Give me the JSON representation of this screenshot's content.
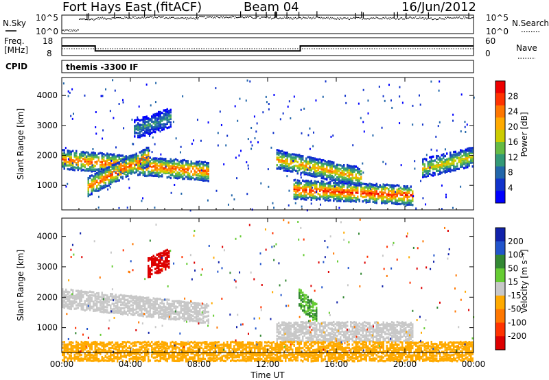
{
  "header": {
    "station": "Fort Hays East (fitACF)",
    "beam": "Beam 04",
    "date": "16/Jun/2012"
  },
  "nsky_panel": {
    "left_label": "N.Sky",
    "right_label": "N.Search",
    "y_ticks": [
      "10^5",
      "10^0"
    ],
    "right_ticks": [
      "10^5",
      "10^0"
    ]
  },
  "freq_panel": {
    "left_label_1": "Freq.",
    "left_label_2": "[MHz]",
    "right_label": "Nave",
    "y_ticks": [
      "18",
      "8"
    ],
    "right_ticks": [
      "60",
      "0"
    ]
  },
  "cpid": {
    "label": "CPID",
    "value": "themis -3300 IF"
  },
  "x_axis": {
    "label": "Time UT",
    "ticks": [
      "00:00",
      "04:00",
      "08:00",
      "12:00",
      "16:00",
      "20:00",
      "00:00"
    ]
  },
  "power_panel": {
    "ylabel": "Slant Range [km]",
    "y_ticks": [
      "1000",
      "2000",
      "3000",
      "4000"
    ],
    "colorbar_label": "Power [dB]",
    "colorbar_ticks": [
      "28",
      "24",
      "20",
      "16",
      "12",
      "8",
      "4"
    ],
    "colors": [
      "#ee0000",
      "#ff3300",
      "#ff7700",
      "#ffaa00",
      "#cccc00",
      "#66bb44",
      "#339977",
      "#2266aa",
      "#1133cc",
      "#0000ff"
    ]
  },
  "velocity_panel": {
    "ylabel": "Slant Range [km]",
    "y_ticks": [
      "1000",
      "2000",
      "3000",
      "4000"
    ],
    "colorbar_label": "Velocity [m s⁻¹]",
    "colorbar_ticks": [
      "200",
      "100",
      "50",
      "15",
      "-15",
      "-50",
      "-100",
      "-200"
    ],
    "colors": [
      "#1122aa",
      "#2255cc",
      "#338833",
      "#66cc33",
      "#c8c8c8",
      "#ffaa00",
      "#ff7700",
      "#ff3300",
      "#dd0000"
    ]
  },
  "chart_data": [
    {
      "type": "line",
      "title": "N.Sky / N.Search",
      "x_range_hours": [
        0,
        24
      ],
      "series": [
        {
          "name": "N.Sky",
          "values": [
            1,
            4.2,
            4.5,
            4.6,
            4.7,
            4.8,
            4.6,
            4.5,
            4.8,
            4.9,
            4.8,
            4.7,
            4.6,
            4.5,
            4.6,
            4.5,
            4.4,
            4.5,
            4.6,
            4.5,
            4.6,
            4.4,
            4.5,
            4.6,
            4.5
          ]
        }
      ]
    },
    {
      "type": "line",
      "title": "Freq. [MHz] / Nave",
      "x_hours": [
        0,
        1.95,
        1.95,
        13.9,
        13.9,
        24
      ],
      "freq_mhz": [
        13.4,
        13.4,
        10.6,
        10.6,
        13.4,
        13.4
      ],
      "nave": [
        20,
        20,
        20,
        20,
        20,
        20
      ]
    },
    {
      "type": "heatmap",
      "title": "Power [dB]",
      "x_range_hours": [
        0,
        24
      ],
      "ylim_km": [
        180,
        4600
      ],
      "features": [
        {
          "t_start": 0.0,
          "t_end": 8.5,
          "range_km_start": 1900,
          "range_km_end": 1500,
          "peak_db": 26
        },
        {
          "t_start": 1.5,
          "t_end": 5.0,
          "range_km_start": 1000,
          "range_km_end": 2000,
          "peak_db": 26
        },
        {
          "t_start": 4.2,
          "t_end": 6.3,
          "range_km_start": 2900,
          "range_km_end": 3300,
          "peak_db": 12
        },
        {
          "t_start": 13.5,
          "t_end": 20.5,
          "range_km_start": 900,
          "range_km_end": 700,
          "peak_db": 28
        },
        {
          "t_start": 12.5,
          "t_end": 17.5,
          "range_km_start": 1900,
          "range_km_end": 1300,
          "peak_db": 22
        },
        {
          "t_start": 21.0,
          "t_end": 24.0,
          "range_km_start": 1600,
          "range_km_end": 2000,
          "peak_db": 20
        }
      ]
    },
    {
      "type": "heatmap",
      "title": "Velocity [m s^-1]",
      "x_range_hours": [
        0,
        24
      ],
      "ylim_km": [
        180,
        4600
      ],
      "features": [
        {
          "t_start": 0.0,
          "t_end": 8.5,
          "range_km_start": 2000,
          "range_km_end": 1500,
          "velocity": 0
        },
        {
          "t_start": 5.0,
          "t_end": 6.2,
          "range_km_start": 3000,
          "range_km_end": 3300,
          "velocity": -200
        },
        {
          "t_start": 12.5,
          "t_end": 20.5,
          "range_km_start": 900,
          "range_km_end": 900,
          "velocity": 0
        },
        {
          "t_start": 13.8,
          "t_end": 14.8,
          "range_km_start": 2000,
          "range_km_end": 1500,
          "velocity": 30
        },
        {
          "t_start": 0.0,
          "t_end": 24.0,
          "range_km_start": 250,
          "range_km_end": 250,
          "velocity": -30
        }
      ]
    }
  ]
}
